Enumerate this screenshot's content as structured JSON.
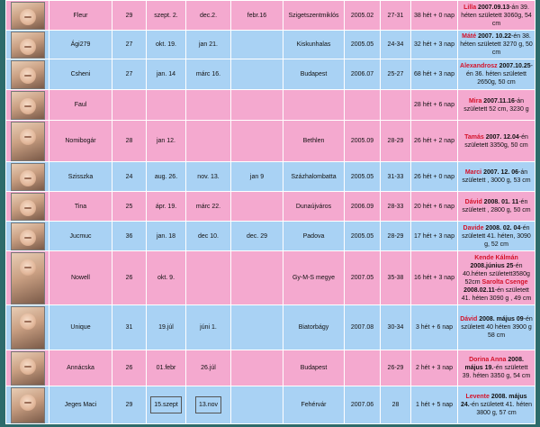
{
  "rows": [
    {
      "user": "Fleur",
      "age": "29",
      "c1": "szept. 2.",
      "c2": "dec.2.",
      "c3": "febr.16",
      "city": "Szigetszentmiklós",
      "year": "2005.02",
      "cycle": "27-31",
      "week": "38 hét + 0 nap",
      "note": [
        {
          "t": "Lilla ",
          "s": "nm"
        },
        {
          "t": "2007.09.13",
          "s": "dt"
        },
        {
          "t": "-án 39. héten született 3060g, 54 cm",
          "s": ""
        }
      ]
    },
    {
      "user": "Ági279",
      "age": "27",
      "c1": "okt. 19.",
      "c2": "jan 21.",
      "c3": "",
      "city": "Kiskunhalas",
      "year": "2005.05",
      "cycle": "24-34",
      "week": "32 hét + 3 nap",
      "note": [
        {
          "t": "Máté ",
          "s": "nm"
        },
        {
          "t": "2007. 10.22",
          "s": "dt"
        },
        {
          "t": "-én 38. héten született 3270 g, 50 cm",
          "s": ""
        }
      ]
    },
    {
      "user": "Csheni",
      "age": "27",
      "c1": "jan. 14",
      "c2": "márc 16.",
      "c3": "",
      "city": "Budapest",
      "year": "2006.07",
      "cycle": "25-27",
      "week": "68 hét + 3 nap",
      "note": [
        {
          "t": "Alexandrosz ",
          "s": "nm"
        },
        {
          "t": "2007.10.25",
          "s": "dt"
        },
        {
          "t": "-én 36. héten született 2650g, 50 cm",
          "s": ""
        }
      ]
    },
    {
      "user": "Faul",
      "age": "",
      "c1": "",
      "c2": "",
      "c3": "",
      "city": "",
      "year": "",
      "cycle": "",
      "week": "28 hét + 6 nap",
      "note": [
        {
          "t": "Mira ",
          "s": "nm"
        },
        {
          "t": "2007.11.16",
          "s": "dt"
        },
        {
          "t": "-án született 52 cm, 3230 g",
          "s": ""
        }
      ]
    },
    {
      "user": "Nomibogár",
      "age": "28",
      "c1": "jan 12.",
      "c2": "",
      "c3": "",
      "city": "Bethlen",
      "year": "2005.09",
      "cycle": "28-29",
      "week": "26 hét + 2 nap",
      "note": [
        {
          "t": "Tamás ",
          "s": "nm"
        },
        {
          "t": "2007. 12.04",
          "s": "dt"
        },
        {
          "t": "-én született 3350g, 50 cm",
          "s": ""
        }
      ]
    },
    {
      "user": "Szisszka",
      "age": "24",
      "c1": "aug. 26.",
      "c2": "nov. 13.",
      "c3": "jan 9",
      "city": "Százhalombatta",
      "year": "2005.05",
      "cycle": "31-33",
      "week": "26 hét + 0 nap",
      "note": [
        {
          "t": "Marci ",
          "s": "nm"
        },
        {
          "t": "2007. 12. 06",
          "s": "dt"
        },
        {
          "t": "-án született , 3000 g, 53 cm",
          "s": ""
        }
      ]
    },
    {
      "user": "Tina",
      "age": "25",
      "c1": "ápr. 19.",
      "c2": "márc 22.",
      "c3": "",
      "city": "Dunaújváros",
      "year": "2006.09",
      "cycle": "28-33",
      "week": "20 hét + 6 nap",
      "note": [
        {
          "t": "Dávid ",
          "s": "nm"
        },
        {
          "t": "2008. 01. 11",
          "s": "dt"
        },
        {
          "t": "-én született , 2800 g, 50 cm",
          "s": ""
        }
      ]
    },
    {
      "user": "Jucmuc",
      "age": "36",
      "c1": "jan. 18",
      "c2": "dec 10.",
      "c3": "dec. 29",
      "city": "Padova",
      "year": "2005.05",
      "cycle": "28-29",
      "week": "17 hét + 3 nap",
      "note": [
        {
          "t": "Davide ",
          "s": "nm"
        },
        {
          "t": "2008. 02. 04",
          "s": "dt"
        },
        {
          "t": "-én született 41. héten, 3090 g, 52 cm",
          "s": ""
        }
      ]
    },
    {
      "user": "Nowell",
      "age": "26",
      "c1": "okt. 9.",
      "c2": "",
      "c3": "",
      "city": "Gy-M-S megye",
      "year": "2007.05",
      "cycle": "35-38",
      "week": "16 hét + 3 nap",
      "note": [
        {
          "t": "Kende Kálmán ",
          "s": "nm"
        },
        {
          "t": "2008.június 25",
          "s": "dt"
        },
        {
          "t": "-én 40.héten született3580g 52cm ",
          "s": ""
        },
        {
          "t": "Sarolta Csenge ",
          "s": "nm"
        },
        {
          "t": "2008.02.11",
          "s": "dt"
        },
        {
          "t": "-én született 41. héten 3090 g , 49 cm",
          "s": ""
        }
      ]
    },
    {
      "user": "Unique",
      "age": "31",
      "c1": "19.júl",
      "c2": "júni 1.",
      "c3": "",
      "city": "Biatorbágy",
      "year": "2007.08",
      "cycle": "30-34",
      "week": "3 hét + 6 nap",
      "note": [
        {
          "t": "Dávid ",
          "s": "nm"
        },
        {
          "t": "2008. május 09",
          "s": "dt"
        },
        {
          "t": "-én született 40 héten 3900 g 58 cm",
          "s": ""
        }
      ]
    },
    {
      "user": "Annácska",
      "age": "26",
      "c1": "01.febr",
      "c2": "26.júl",
      "c3": "",
      "city": "Budapest",
      "year": "",
      "cycle": "26-29",
      "week": "2 hét + 3 nap",
      "note": [
        {
          "t": "Dorina Anna ",
          "s": "nm"
        },
        {
          "t": "2008. május 19.",
          "s": "dt"
        },
        {
          "t": "-én született 39. héten 3350 g, 54 cm",
          "s": ""
        }
      ]
    },
    {
      "user": "Jeges Maci",
      "age": "29",
      "c1": "15.szept",
      "c2": "13.nov",
      "c3": "",
      "city": "Fehérvár",
      "year": "2007.06",
      "cycle": "28",
      "week": "1 hét + 5 nap",
      "note": [
        {
          "t": "Levente ",
          "s": "nm"
        },
        {
          "t": "2008. május 24.",
          "s": "dt"
        },
        {
          "t": "-én született 41. héten 3800 g, 57 cm",
          "s": ""
        }
      ]
    }
  ],
  "colors": {
    "pink": "#f4a9cf",
    "blue": "#a9d2f4",
    "name_red": "#d4122a",
    "border": "#ffffff"
  }
}
